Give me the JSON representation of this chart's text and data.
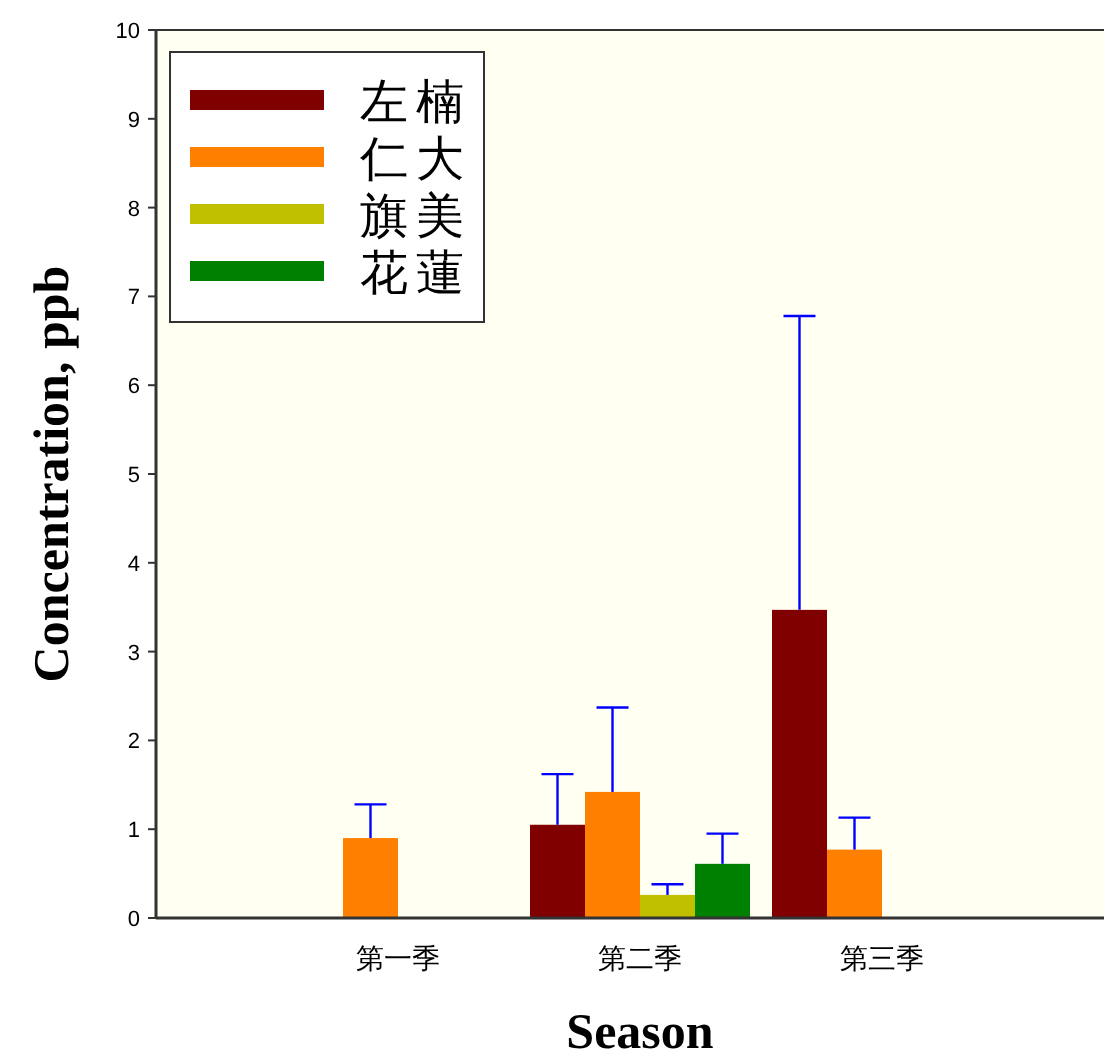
{
  "chart_data": {
    "type": "bar",
    "xlabel": "Season",
    "ylabel": "Concentration, ppb",
    "categories": [
      "第一季",
      "第二季",
      "第三季"
    ],
    "series": [
      {
        "name": "左楠",
        "color": "#800000",
        "values": [
          null,
          1.05,
          3.47
        ],
        "errors": [
          null,
          [
            1.05,
            1.62
          ],
          [
            3.47,
            6.78
          ]
        ]
      },
      {
        "name": "仁大",
        "color": "#ff8000",
        "values": [
          0.9,
          1.42,
          0.77
        ],
        "errors": [
          [
            0.9,
            1.28
          ],
          [
            1.42,
            2.37
          ],
          [
            0.77,
            1.13
          ]
        ]
      },
      {
        "name": "旗美",
        "color": "#c0c000",
        "values": [
          null,
          0.26,
          null
        ],
        "errors": [
          null,
          [
            0.26,
            0.38
          ],
          null
        ]
      },
      {
        "name": "花蓮",
        "color": "#008000",
        "values": [
          null,
          0.61,
          null
        ],
        "errors": [
          null,
          [
            0.61,
            0.95
          ],
          null
        ]
      }
    ],
    "ylim": [
      0,
      10
    ],
    "yticks": [
      0,
      1,
      2,
      3,
      4,
      5,
      6,
      7,
      8,
      9,
      10
    ],
    "legend": "top left",
    "grid": false
  }
}
